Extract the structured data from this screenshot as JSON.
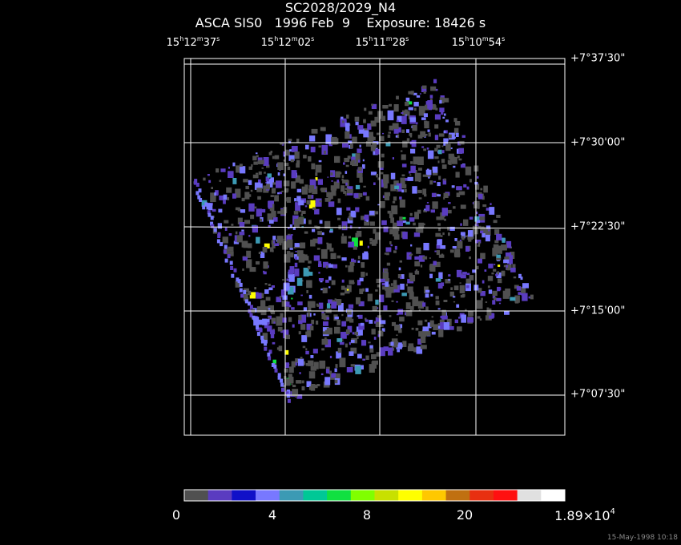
{
  "header": {
    "title": "SC2028/2029_N4",
    "subtitle": "ASCA SIS0   1996 Feb  9    Exposure: 18426 s"
  },
  "ra_ticks": [
    {
      "h": "15",
      "m": "12",
      "s": "37"
    },
    {
      "h": "15",
      "m": "12",
      "s": "02"
    },
    {
      "h": "15",
      "m": "11",
      "s": "28"
    },
    {
      "h": "15",
      "m": "10",
      "s": "54"
    }
  ],
  "dec_ticks": [
    "+7°37'30\"",
    "+7°30'00\"",
    "+7°22'30\"",
    "+7°15'00\"",
    "+7°07'30\""
  ],
  "colorbar": {
    "colors": [
      "#505050",
      "#5a3cc0",
      "#1010c8",
      "#7878ff",
      "#3c9ab4",
      "#00c896",
      "#10e040",
      "#80ff00",
      "#c8e000",
      "#ffff00",
      "#ffc800",
      "#c07010",
      "#e83010",
      "#ff1010",
      "#e0e0e0",
      "#ffffff"
    ],
    "labels": [
      "0",
      "4",
      "8",
      "20",
      "1.89×10"
    ],
    "max_exp": "4"
  },
  "footer": {
    "stamp": "15-May-1998 10:18"
  }
}
